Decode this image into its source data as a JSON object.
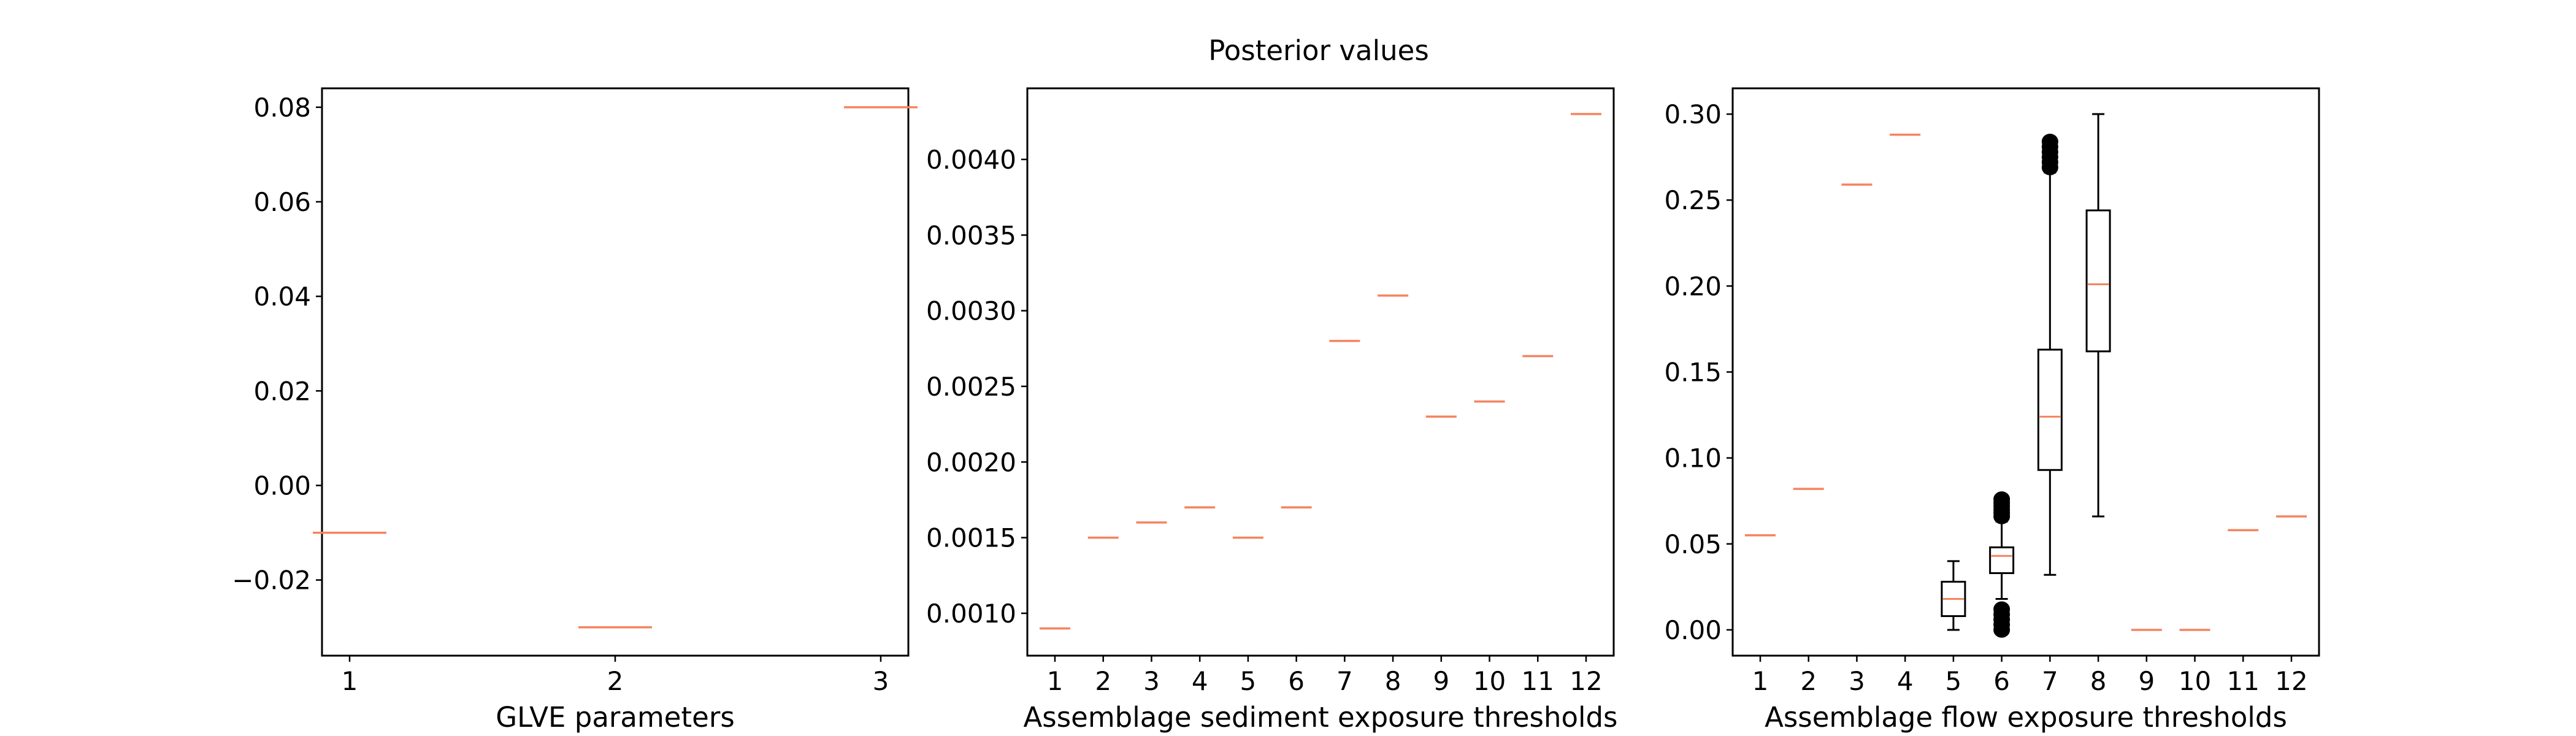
{
  "figure": {
    "title": "Posterior values",
    "colors": {
      "median": "#f4845f",
      "box": "#000000",
      "frame": "#000000"
    }
  },
  "chart_data": [
    {
      "type": "box",
      "title": "",
      "xlabel": "GLVE parameters",
      "ylabel": "",
      "categories": [
        "1",
        "2",
        "3"
      ],
      "ylim": [
        -0.036,
        0.084
      ],
      "yticks": [
        -0.02,
        0.0,
        0.02,
        0.04,
        0.06,
        0.08
      ],
      "ytick_labels": [
        "−0.02",
        "0.00",
        "0.02",
        "0.04",
        "0.06",
        "0.08"
      ],
      "boxes": [
        {
          "category": "1",
          "median": -0.01
        },
        {
          "category": "2",
          "median": -0.03
        },
        {
          "category": "3",
          "median": 0.08
        }
      ]
    },
    {
      "type": "box",
      "title": "",
      "xlabel": "Assemblage sediment exposure thresholds",
      "ylabel": "",
      "categories": [
        "1",
        "2",
        "3",
        "4",
        "5",
        "6",
        "7",
        "8",
        "9",
        "10",
        "11",
        "12"
      ],
      "ylim": [
        0.00072,
        0.00447
      ],
      "yticks": [
        0.001,
        0.0015,
        0.002,
        0.0025,
        0.003,
        0.0035,
        0.004
      ],
      "ytick_labels": [
        "0.0010",
        "0.0015",
        "0.0020",
        "0.0025",
        "0.0030",
        "0.0035",
        "0.0040"
      ],
      "boxes": [
        {
          "category": "1",
          "median": 0.0009
        },
        {
          "category": "2",
          "median": 0.0015
        },
        {
          "category": "3",
          "median": 0.0016
        },
        {
          "category": "4",
          "median": 0.0017
        },
        {
          "category": "5",
          "median": 0.0015
        },
        {
          "category": "6",
          "median": 0.0017
        },
        {
          "category": "7",
          "median": 0.0028
        },
        {
          "category": "8",
          "median": 0.0031
        },
        {
          "category": "9",
          "median": 0.0023
        },
        {
          "category": "10",
          "median": 0.0024
        },
        {
          "category": "11",
          "median": 0.0027
        },
        {
          "category": "12",
          "median": 0.0043
        }
      ]
    },
    {
      "type": "box",
      "title": "",
      "xlabel": "Assemblage flow exposure thresholds",
      "ylabel": "",
      "categories": [
        "1",
        "2",
        "3",
        "4",
        "5",
        "6",
        "7",
        "8",
        "9",
        "10",
        "11",
        "12"
      ],
      "ylim": [
        -0.015,
        0.315
      ],
      "yticks": [
        0.0,
        0.05,
        0.1,
        0.15,
        0.2,
        0.25,
        0.3
      ],
      "ytick_labels": [
        "0.00",
        "0.05",
        "0.10",
        "0.15",
        "0.20",
        "0.25",
        "0.30"
      ],
      "boxes": [
        {
          "category": "1",
          "median": 0.055
        },
        {
          "category": "2",
          "median": 0.082
        },
        {
          "category": "3",
          "median": 0.259
        },
        {
          "category": "4",
          "median": 0.288
        },
        {
          "category": "5",
          "median": 0.018,
          "q1": 0.008,
          "q3": 0.028,
          "whisker_low": 0.0,
          "whisker_high": 0.04
        },
        {
          "category": "6",
          "median": 0.043,
          "q1": 0.033,
          "q3": 0.048,
          "whisker_low": 0.018,
          "whisker_high": 0.063,
          "outliers_high": [
            0.066,
            0.068,
            0.07,
            0.072,
            0.074,
            0.076
          ],
          "outliers_low": [
            0.0,
            0.003,
            0.006,
            0.009,
            0.012
          ]
        },
        {
          "category": "7",
          "median": 0.124,
          "q1": 0.093,
          "q3": 0.163,
          "whisker_low": 0.032,
          "whisker_high": 0.266,
          "outliers_high": [
            0.269,
            0.272,
            0.275,
            0.278,
            0.281,
            0.284
          ]
        },
        {
          "category": "8",
          "median": 0.201,
          "q1": 0.162,
          "q3": 0.244,
          "whisker_low": 0.066,
          "whisker_high": 0.3
        },
        {
          "category": "9",
          "median": 0.0
        },
        {
          "category": "10",
          "median": 0.0
        },
        {
          "category": "11",
          "median": 0.058
        },
        {
          "category": "12",
          "median": 0.066
        }
      ]
    }
  ]
}
